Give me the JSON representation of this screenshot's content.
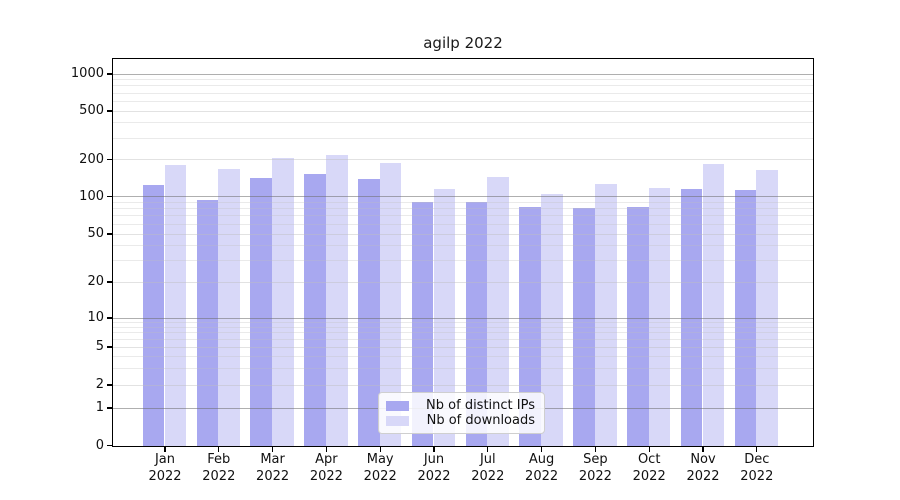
{
  "chart_data": {
    "type": "bar",
    "title": "agilp 2022",
    "categories": [
      "Jan 2022",
      "Feb 2022",
      "Mar 2022",
      "Apr 2022",
      "May 2022",
      "Jun 2022",
      "Jul 2022",
      "Aug 2022",
      "Sep 2022",
      "Oct 2022",
      "Nov 2022",
      "Dec 2022"
    ],
    "series": [
      {
        "name": "Nb of distinct IPs",
        "color": "#a8a8f0",
        "values": [
          125,
          95,
          142,
          153,
          139,
          91,
          92,
          83,
          81,
          83,
          117,
          113
        ]
      },
      {
        "name": "Nb of downloads",
        "color": "#d8d8f8",
        "values": [
          183,
          170,
          209,
          221,
          188,
          116,
          146,
          105,
          128,
          119,
          185,
          165
        ]
      }
    ],
    "yscale": "symlog",
    "yticks": [
      0,
      1,
      2,
      5,
      10,
      20,
      50,
      100,
      200,
      500,
      1000
    ],
    "ylim": [
      0,
      1300
    ],
    "grid": true,
    "legend_position": "lower center"
  }
}
